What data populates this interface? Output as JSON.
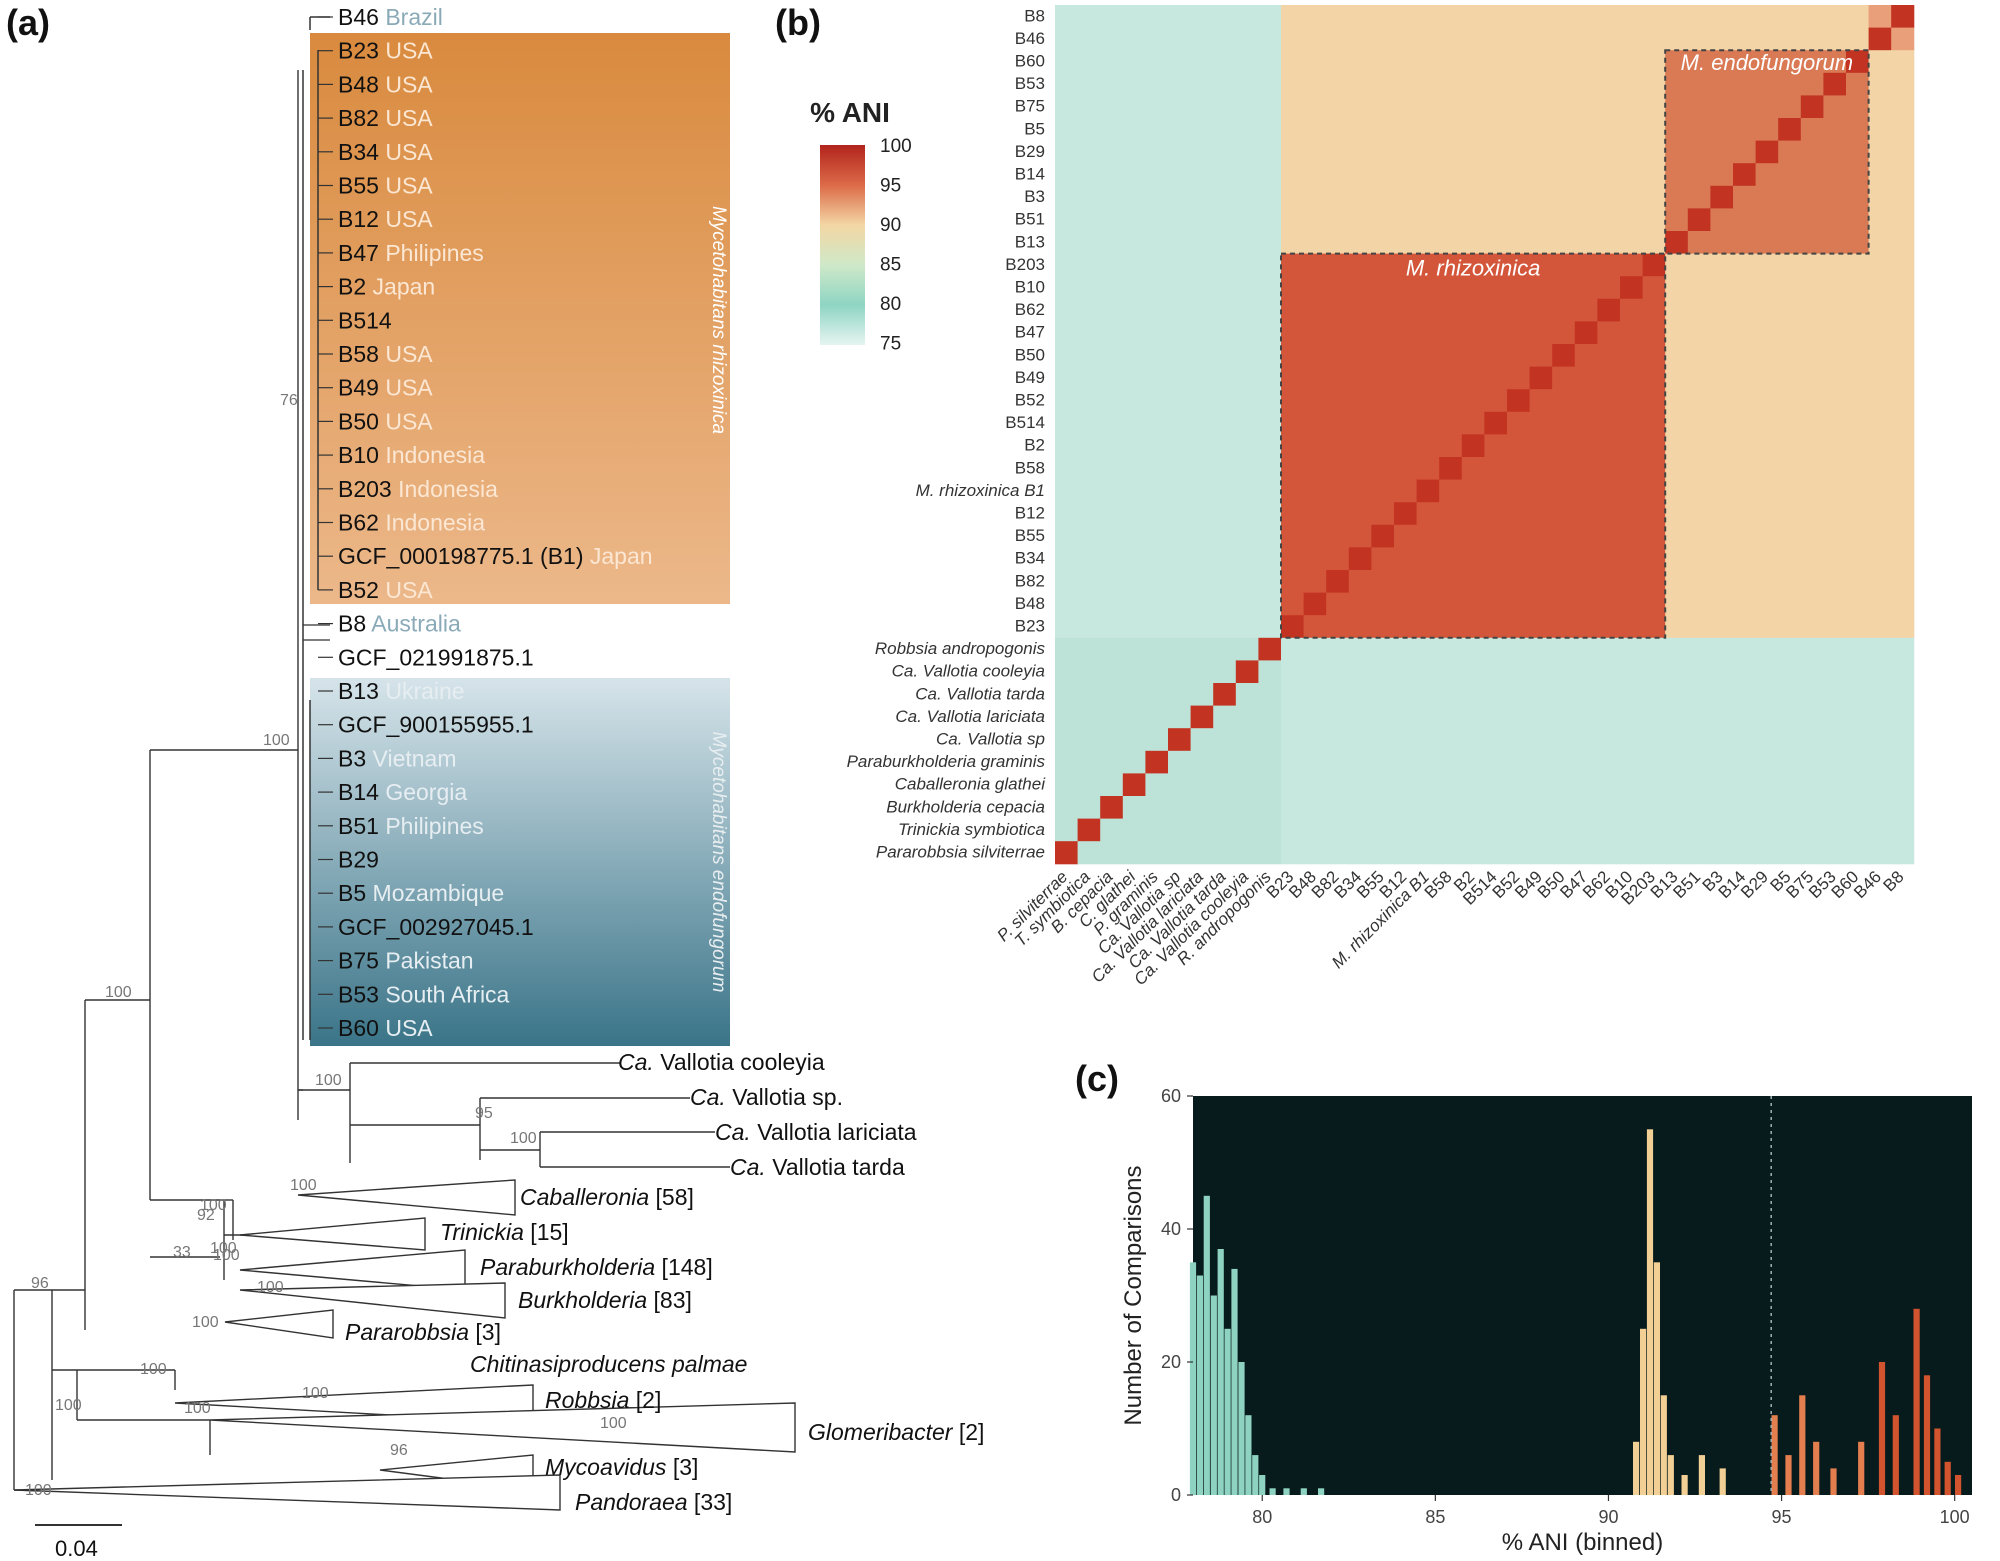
{
  "panels": {
    "a": "(a)",
    "b": "(b)",
    "c": "(c)"
  },
  "tree": {
    "scale_label": "0.04",
    "clade_rhizoxinica_label": "Mycetohabitans rhizoxinica",
    "clade_endofungorum_label": "Mycetohabitans endofungorum",
    "tips": [
      {
        "name": "B46",
        "country": "Brazil"
      },
      {
        "name": "B23",
        "country": "USA"
      },
      {
        "name": "B48",
        "country": "USA"
      },
      {
        "name": "B82",
        "country": "USA"
      },
      {
        "name": "B34",
        "country": "USA"
      },
      {
        "name": "B55",
        "country": "USA"
      },
      {
        "name": "B12",
        "country": "USA"
      },
      {
        "name": "B47",
        "country": "Philipines"
      },
      {
        "name": "B2",
        "country": "Japan"
      },
      {
        "name": "B514",
        "country": ""
      },
      {
        "name": "B58",
        "country": " USA"
      },
      {
        "name": "B49",
        "country": " USA"
      },
      {
        "name": "B50",
        "country": "USA"
      },
      {
        "name": "B10",
        "country": "Indonesia"
      },
      {
        "name": "B203",
        "country": "Indonesia"
      },
      {
        "name": "B62",
        "country": "Indonesia"
      },
      {
        "name": "GCF_000198775.1 (B1)",
        "country": "Japan"
      },
      {
        "name": "B52",
        "country": "USA"
      },
      {
        "name": "B8",
        "country": "Australia"
      },
      {
        "name": "GCF_021991875.1",
        "country": ""
      },
      {
        "name": "B13",
        "country": "Ukraine"
      },
      {
        "name": "GCF_900155955.1",
        "country": ""
      },
      {
        "name": "B3",
        "country": "Vietnam"
      },
      {
        "name": "B14",
        "country": "Georgia"
      },
      {
        "name": "B51",
        "country": "Philipines"
      },
      {
        "name": "B29",
        "country": ""
      },
      {
        "name": "B5",
        "country": "Mozambique"
      },
      {
        "name": "GCF_002927045.1",
        "country": ""
      },
      {
        "name": "B75",
        "country": "Pakistan"
      },
      {
        "name": "B53",
        "country": "South Africa"
      },
      {
        "name": "B60",
        "country": "USA"
      }
    ],
    "outgroup_tips": [
      {
        "prefix": "Ca.",
        "name": "Vallotia cooleyia",
        "count": ""
      },
      {
        "prefix": "Ca.",
        "name": "Vallotia sp.",
        "count": ""
      },
      {
        "prefix": "Ca.",
        "name": "Vallotia lariciata",
        "count": ""
      },
      {
        "prefix": "Ca.",
        "name": "Vallotia tarda",
        "count": ""
      },
      {
        "prefix": "",
        "name": "Caballeronia",
        "count": "[58]"
      },
      {
        "prefix": "",
        "name": "Trinickia",
        "count": "[15]"
      },
      {
        "prefix": "",
        "name": "Paraburkholderia",
        "count": "[148]"
      },
      {
        "prefix": "",
        "name": "Burkholderia",
        "count": "[83]"
      },
      {
        "prefix": "",
        "name": "Pararobbsia",
        "count": "[3]"
      },
      {
        "prefix": "",
        "name": "Chitinasiproducens palmae",
        "count": ""
      },
      {
        "prefix": "",
        "name": "Robbsia",
        "count": "[2]"
      },
      {
        "prefix": "",
        "name": "Glomeribacter",
        "count": "[2]"
      },
      {
        "prefix": "",
        "name": "Mycoavidus",
        "count": "[3]"
      },
      {
        "prefix": "",
        "name": "Pandoraea",
        "count": "[33]"
      }
    ],
    "bootstrap": [
      "76",
      "100",
      "100",
      "100",
      "95",
      "100",
      "100",
      "100",
      "92",
      "33",
      "100",
      "100",
      "100",
      "100",
      "96",
      "100",
      "100",
      "100",
      "100",
      "100",
      "96",
      "100"
    ]
  },
  "heatmap": {
    "legend_title": "% ANI",
    "legend_ticks": [
      "100",
      "95",
      "90",
      "85",
      "80",
      "75"
    ],
    "row_labels": [
      "B8",
      "B46",
      "B60",
      "B53",
      "B75",
      "B5",
      "B29",
      "B14",
      "B3",
      "B51",
      "B13",
      "B203",
      "B10",
      "B62",
      "B47",
      "B50",
      "B49",
      "B52",
      "B514",
      "B2",
      "B58",
      "M. rhizoxinica B1",
      "B12",
      "B55",
      "B34",
      "B82",
      "B48",
      "B23",
      "Robbsia andropogonis",
      "Ca. Vallotia cooleyia",
      "Ca. Vallotia tarda",
      "Ca. Vallotia lariciata",
      "Ca. Vallotia sp",
      "Paraburkholderia graminis",
      "Caballeronia glathei",
      "Burkholderia cepacia",
      "Trinickia symbiotica",
      "Pararobbsia silviterrae"
    ],
    "col_labels": [
      "P. silviterrae",
      "T. symbiotica",
      "B. cepacia",
      "C. glathei",
      "P. graminis",
      "Ca. Vallotia sp",
      "Ca. Vallotia lariciata",
      "Ca. Vallotia tarda",
      "Ca. Vallotia cooleyia",
      "R. andropogonis",
      "B23",
      "B48",
      "B82",
      "B34",
      "B55",
      "B12",
      "M. rhizoxinica B1",
      "B58",
      "B2",
      "B514",
      "B52",
      "B49",
      "B50",
      "B47",
      "B62",
      "B10",
      "B203",
      "B13",
      "B51",
      "B3",
      "B14",
      "B29",
      "B5",
      "B75",
      "B53",
      "B60",
      "B46",
      "B8"
    ],
    "box_endofungorum_label": "M. endofungorum",
    "box_rhizoxinica_label": "M. rhizoxinica",
    "colors": {
      "high": "#c0392b",
      "mid": "#f3d6a4",
      "low": "#cfe9e3",
      "teal": "#a8dccf"
    }
  },
  "chart_data": {
    "type": "bar",
    "title": "",
    "xlabel": "% ANI (binned)",
    "ylabel": "Number of Comparisons",
    "xlim": [
      78,
      100.5
    ],
    "ylim": [
      0,
      60
    ],
    "x_ticks": [
      "80",
      "85",
      "90",
      "95",
      "100"
    ],
    "y_ticks": [
      "0",
      "20",
      "40",
      "60"
    ],
    "background": "#071a1c",
    "threshold_line_x": 94.7,
    "bins": [
      {
        "x": 78.0,
        "y": 35
      },
      {
        "x": 78.2,
        "y": 33
      },
      {
        "x": 78.4,
        "y": 45
      },
      {
        "x": 78.6,
        "y": 30
      },
      {
        "x": 78.8,
        "y": 37
      },
      {
        "x": 79.0,
        "y": 25
      },
      {
        "x": 79.2,
        "y": 34
      },
      {
        "x": 79.4,
        "y": 20
      },
      {
        "x": 79.6,
        "y": 12
      },
      {
        "x": 79.8,
        "y": 6
      },
      {
        "x": 80.0,
        "y": 3
      },
      {
        "x": 80.3,
        "y": 1
      },
      {
        "x": 80.7,
        "y": 1
      },
      {
        "x": 81.2,
        "y": 1
      },
      {
        "x": 81.7,
        "y": 1
      },
      {
        "x": 90.8,
        "y": 8
      },
      {
        "x": 91.0,
        "y": 25
      },
      {
        "x": 91.2,
        "y": 55
      },
      {
        "x": 91.4,
        "y": 35
      },
      {
        "x": 91.6,
        "y": 15
      },
      {
        "x": 91.8,
        "y": 6
      },
      {
        "x": 92.2,
        "y": 3
      },
      {
        "x": 92.7,
        "y": 6
      },
      {
        "x": 93.3,
        "y": 4
      },
      {
        "x": 94.8,
        "y": 12
      },
      {
        "x": 95.2,
        "y": 6
      },
      {
        "x": 95.6,
        "y": 15
      },
      {
        "x": 96.0,
        "y": 8
      },
      {
        "x": 96.5,
        "y": 4
      },
      {
        "x": 97.3,
        "y": 8
      },
      {
        "x": 97.9,
        "y": 20
      },
      {
        "x": 98.3,
        "y": 12
      },
      {
        "x": 98.9,
        "y": 28
      },
      {
        "x": 99.2,
        "y": 18
      },
      {
        "x": 99.5,
        "y": 10
      },
      {
        "x": 99.8,
        "y": 5
      },
      {
        "x": 100.1,
        "y": 3
      }
    ]
  }
}
